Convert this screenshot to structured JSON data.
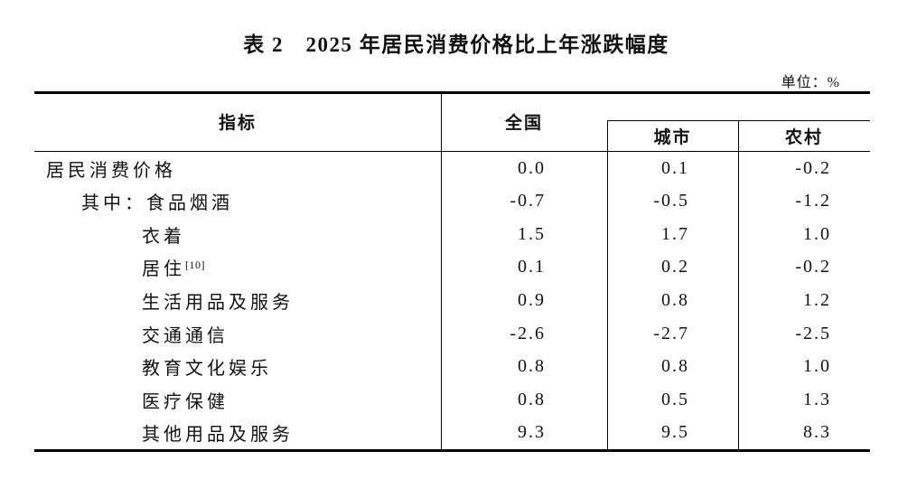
{
  "title": "表 2　2025 年居民消费价格比上年涨跌幅度",
  "unit_label": "单位：%",
  "colors": {
    "text": "#111111",
    "line": "#000000",
    "background": "#ffffff"
  },
  "table": {
    "header": {
      "indicator": "指标",
      "national": "全国",
      "city": "城市",
      "rural": "农村"
    },
    "rows": [
      {
        "label": "居民消费价格",
        "indent": 0,
        "national": "0.0",
        "city": "0.1",
        "rural": "-0.2"
      },
      {
        "label": "其中：食品烟酒",
        "indent": 1,
        "national": "-0.7",
        "city": "-0.5",
        "rural": "-1.2"
      },
      {
        "label": "衣着",
        "indent": 2,
        "national": "1.5",
        "city": "1.7",
        "rural": "1.0"
      },
      {
        "label": "居住",
        "footnote": "[10]",
        "indent": 2,
        "national": "0.1",
        "city": "0.2",
        "rural": "-0.2"
      },
      {
        "label": "生活用品及服务",
        "indent": 2,
        "national": "0.9",
        "city": "0.8",
        "rural": "1.2"
      },
      {
        "label": "交通通信",
        "indent": 2,
        "national": "-2.6",
        "city": "-2.7",
        "rural": "-2.5"
      },
      {
        "label": "教育文化娱乐",
        "indent": 2,
        "national": "0.8",
        "city": "0.8",
        "rural": "1.0"
      },
      {
        "label": "医疗保健",
        "indent": 2,
        "national": "0.8",
        "city": "0.5",
        "rural": "1.3"
      },
      {
        "label": "其他用品及服务",
        "indent": 2,
        "national": "9.3",
        "city": "9.5",
        "rural": "8.3"
      }
    ]
  }
}
